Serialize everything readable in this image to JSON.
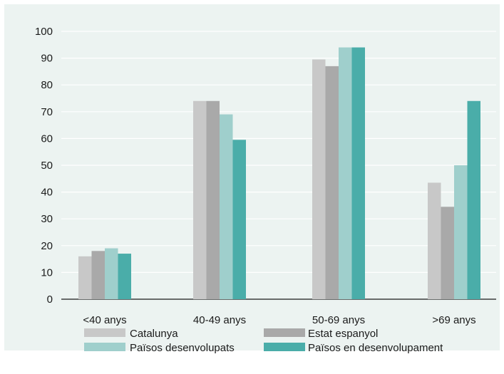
{
  "chart_data": {
    "type": "bar",
    "categories": [
      "<40 anys",
      "40-49 anys",
      "50-69 anys",
      ">69 anys"
    ],
    "series": [
      {
        "name": "Catalunya",
        "color": "#c8c8c8",
        "values": [
          16,
          74,
          89.5,
          43.5
        ]
      },
      {
        "name": "Estat espanyol",
        "color": "#a9a9a9",
        "values": [
          18,
          74,
          87,
          34.5
        ]
      },
      {
        "name": "Països desenvolupats",
        "color": "#9fcfcc",
        "values": [
          19,
          69,
          94,
          50
        ]
      },
      {
        "name": "Països en desenvolupament",
        "color": "#4aada9",
        "values": [
          17,
          59.5,
          94,
          74
        ]
      }
    ],
    "ylim": [
      0,
      100
    ],
    "yticks": [
      0,
      10,
      20,
      30,
      40,
      50,
      60,
      70,
      80,
      90,
      100
    ],
    "grid": true,
    "legend": "bottom"
  }
}
